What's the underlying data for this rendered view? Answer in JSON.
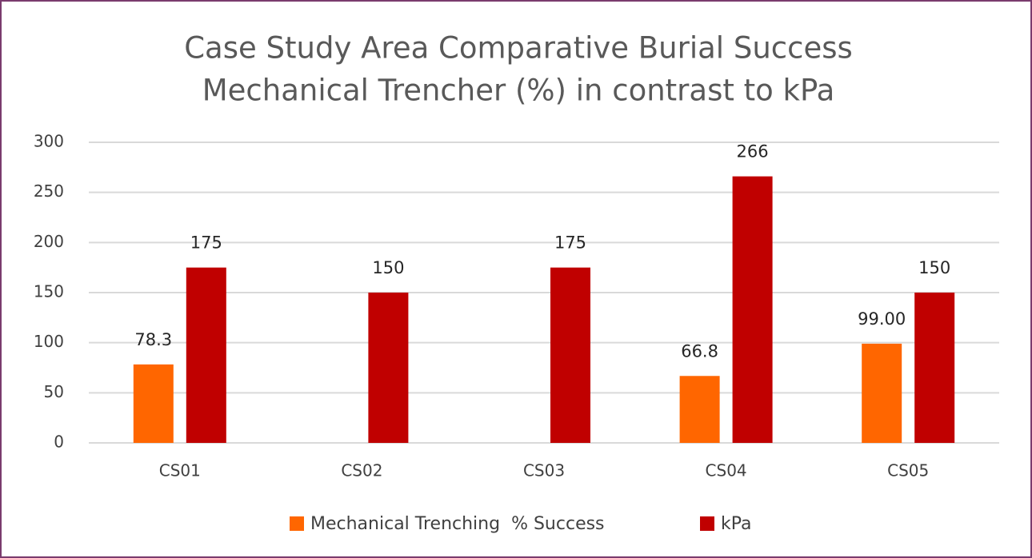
{
  "chart_data": {
    "type": "bar",
    "title": [
      "Case Study Area Comparative Burial Success",
      "Mechanical Trencher (%) in contrast to kPa"
    ],
    "categories": [
      "CS01",
      "CS02",
      "CS03",
      "CS04",
      "CS05"
    ],
    "series": [
      {
        "name": "Mechanical Trenching  % Success",
        "color": "#ff6600",
        "values": [
          78.3,
          null,
          null,
          66.8,
          99
        ],
        "value_labels": [
          "78.3",
          null,
          null,
          "66.8",
          "99.00"
        ]
      },
      {
        "name": "kPa",
        "color": "#c00000",
        "values": [
          175,
          150,
          175,
          266,
          150
        ]
      }
    ],
    "ylim": [
      0,
      300
    ],
    "yticks": [
      0,
      50,
      100,
      150,
      200,
      250,
      300
    ],
    "grid": true,
    "legend": "bottom"
  }
}
